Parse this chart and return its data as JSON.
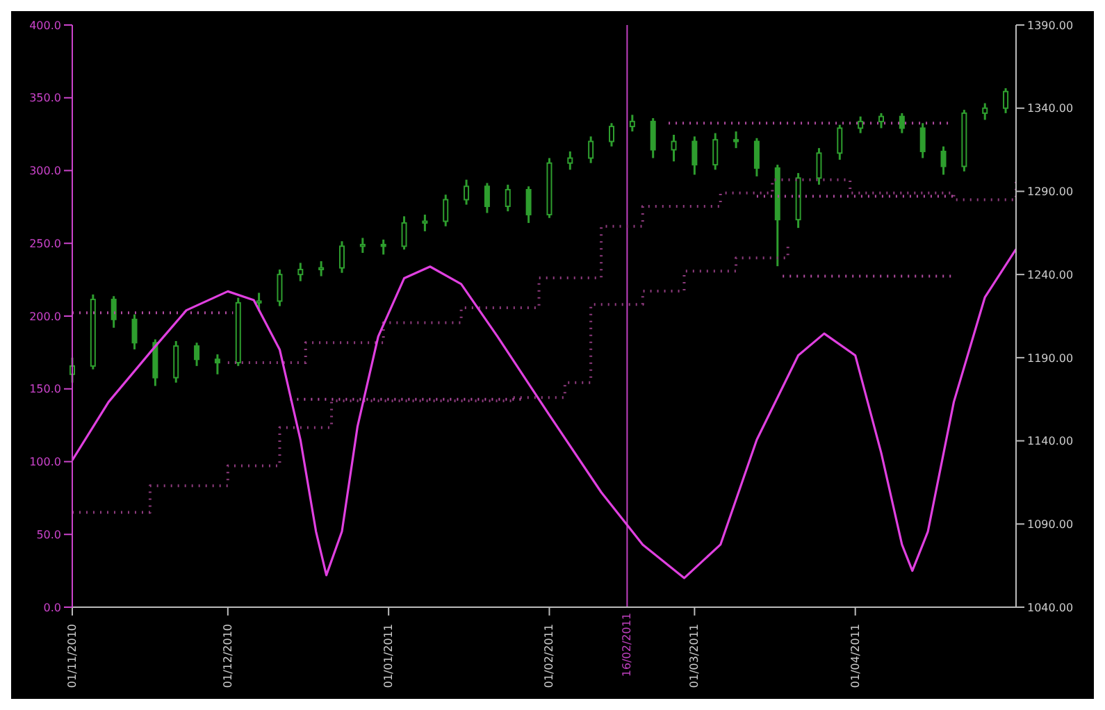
{
  "chart_data": {
    "type": "candlestick",
    "xlim": [
      "2010-11-01",
      "2011-05-02"
    ],
    "xticks": [
      {
        "value": "2010-11-01",
        "label": "01/11/2010"
      },
      {
        "value": "2010-12-01",
        "label": "01/12/2010"
      },
      {
        "value": "2011-01-01",
        "label": "01/01/2011"
      },
      {
        "value": "2011-02-01",
        "label": "01/02/2011"
      },
      {
        "value": "2011-03-01",
        "label": "01/03/2011"
      },
      {
        "value": "2011-04-01",
        "label": "01/04/2011"
      }
    ],
    "ylim": [
      0,
      400
    ],
    "yticks": [
      {
        "value": 0,
        "label": "0.0"
      },
      {
        "value": 50,
        "label": "50.0"
      },
      {
        "value": 100,
        "label": "100.0"
      },
      {
        "value": 150,
        "label": "150.0"
      },
      {
        "value": 200,
        "label": "200.0"
      },
      {
        "value": 250,
        "label": "250.0"
      },
      {
        "value": 300,
        "label": "300.0"
      },
      {
        "value": 350,
        "label": "350.0"
      },
      {
        "value": 400,
        "label": "400.0"
      }
    ],
    "y2lim": [
      1040,
      1390
    ],
    "y2ticks": [
      {
        "value": 1040,
        "label": "1040.00"
      },
      {
        "value": 1090,
        "label": "1090.00"
      },
      {
        "value": 1140,
        "label": "1140.00"
      },
      {
        "value": 1190,
        "label": "1190.00"
      },
      {
        "value": 1240,
        "label": "1240.00"
      },
      {
        "value": 1290,
        "label": "1290.00"
      },
      {
        "value": 1340,
        "label": "1340.00"
      },
      {
        "value": 1390,
        "label": "1390.00"
      }
    ],
    "ref_lines": [
      {
        "axis": "x",
        "value": "2011-02-16",
        "label": "16/02/2011",
        "color": "#c040c0"
      }
    ],
    "series": [
      {
        "type": "step",
        "axis": "y2",
        "color": "#8c3a7c",
        "line_style": "dotted",
        "x": [
          "2010-11-01",
          "2010-11-16",
          "2010-12-01",
          "2010-12-11",
          "2010-12-21",
          "2011-01-25",
          "2011-02-04",
          "2011-02-09",
          "2011-02-19",
          "2011-02-27",
          "2011-03-09",
          "2011-03-19"
        ],
        "values": [
          1097,
          1113,
          1125,
          1148,
          1164,
          1166,
          1175,
          1222,
          1230,
          1242,
          1250,
          1258
        ]
      },
      {
        "type": "step",
        "axis": "y2",
        "color": "#8c3a7c",
        "line_style": "dotted",
        "x": [
          "2010-12-01",
          "2010-12-16",
          "2010-12-31",
          "2011-01-15",
          "2011-01-30",
          "2011-02-11",
          "2011-02-19",
          "2011-03-06",
          "2011-03-16",
          "2011-03-31",
          "2011-04-20",
          "2011-05-02"
        ],
        "values": [
          1187,
          1199,
          1211,
          1220,
          1238,
          1269,
          1281,
          1289,
          1297,
          1289,
          1285,
          1297
        ]
      },
      {
        "type": "line",
        "axis": "y2",
        "color": "#b04aa0",
        "line_style": "dotted",
        "x": [
          "2010-11-01",
          "2010-12-02"
        ],
        "values": [
          1217,
          1217
        ]
      },
      {
        "type": "line",
        "axis": "y2",
        "color": "#b04aa0",
        "line_style": "dotted",
        "x": [
          "2010-12-13",
          "2011-01-27"
        ],
        "values": [
          1165,
          1165
        ]
      },
      {
        "type": "line",
        "axis": "y2",
        "color": "#b04aa0",
        "line_style": "dotted",
        "x": [
          "2011-02-24",
          "2011-04-19"
        ],
        "values": [
          1331,
          1331
        ]
      },
      {
        "type": "line",
        "axis": "y2",
        "color": "#b04aa0",
        "line_style": "dotted",
        "x": [
          "2011-03-13",
          "2011-04-20"
        ],
        "values": [
          1287,
          1287
        ]
      },
      {
        "type": "line",
        "axis": "y2",
        "color": "#b04aa0",
        "line_style": "dotted",
        "x": [
          "2011-03-18",
          "2011-04-20"
        ],
        "values": [
          1239,
          1239
        ]
      },
      {
        "axis": "y2",
        "color": "#2e9e2e",
        "x": [
          "2010-11-01",
          "2010-11-05",
          "2010-11-09",
          "2010-11-13",
          "2010-11-17",
          "2010-11-21",
          "2010-11-25",
          "2010-11-29",
          "2010-12-03",
          "2010-12-07",
          "2010-12-11",
          "2010-12-15",
          "2010-12-19",
          "2010-12-23",
          "2010-12-27",
          "2010-12-31",
          "2011-01-04",
          "2011-01-08",
          "2011-01-12",
          "2011-01-16",
          "2011-01-20",
          "2011-01-24",
          "2011-01-28",
          "2011-02-01",
          "2011-02-05",
          "2011-02-09",
          "2011-02-13",
          "2011-02-17",
          "2011-02-21",
          "2011-02-25",
          "2011-03-01",
          "2011-03-05",
          "2011-03-09",
          "2011-03-13",
          "2011-03-17",
          "2011-03-21",
          "2011-03-25",
          "2011-03-29",
          "2011-04-02",
          "2011-04-06",
          "2011-04-10",
          "2011-04-14",
          "2011-04-18",
          "2011-04-22",
          "2011-04-26",
          "2011-04-30"
        ],
        "ohlc": [
          [
            1180,
            1190,
            1175,
            1185
          ],
          [
            1185,
            1228,
            1183,
            1225
          ],
          [
            1225,
            1227,
            1208,
            1213
          ],
          [
            1213,
            1216,
            1195,
            1199
          ],
          [
            1199,
            1201,
            1173,
            1178
          ],
          [
            1178,
            1200,
            1175,
            1197
          ],
          [
            1197,
            1199,
            1185,
            1189
          ],
          [
            1189,
            1192,
            1180,
            1187
          ],
          [
            1187,
            1226,
            1185,
            1223
          ],
          [
            1223,
            1229,
            1218,
            1224
          ],
          [
            1224,
            1243,
            1221,
            1240
          ],
          [
            1240,
            1247,
            1236,
            1243
          ],
          [
            1243,
            1248,
            1239,
            1244
          ],
          [
            1244,
            1260,
            1241,
            1257
          ],
          [
            1257,
            1262,
            1253,
            1258
          ],
          [
            1258,
            1261,
            1252,
            1257
          ],
          [
            1257,
            1275,
            1255,
            1271
          ],
          [
            1271,
            1276,
            1266,
            1272
          ],
          [
            1272,
            1288,
            1269,
            1285
          ],
          [
            1285,
            1297,
            1282,
            1293
          ],
          [
            1293,
            1295,
            1277,
            1281
          ],
          [
            1281,
            1294,
            1278,
            1291
          ],
          [
            1291,
            1293,
            1271,
            1276
          ],
          [
            1276,
            1310,
            1274,
            1307
          ],
          [
            1307,
            1314,
            1303,
            1310
          ],
          [
            1310,
            1323,
            1307,
            1320
          ],
          [
            1320,
            1331,
            1317,
            1329
          ],
          [
            1329,
            1336,
            1326,
            1332
          ],
          [
            1332,
            1334,
            1310,
            1315
          ],
          [
            1315,
            1324,
            1308,
            1320
          ],
          [
            1320,
            1323,
            1300,
            1306
          ],
          [
            1306,
            1325,
            1303,
            1321
          ],
          [
            1321,
            1326,
            1316,
            1320
          ],
          [
            1320,
            1322,
            1299,
            1304
          ],
          [
            1304,
            1306,
            1245,
            1273
          ],
          [
            1273,
            1301,
            1268,
            1298
          ],
          [
            1298,
            1316,
            1294,
            1313
          ],
          [
            1313,
            1330,
            1309,
            1328
          ],
          [
            1328,
            1335,
            1325,
            1332
          ],
          [
            1332,
            1337,
            1328,
            1335
          ],
          [
            1335,
            1337,
            1325,
            1328
          ],
          [
            1328,
            1331,
            1310,
            1314
          ],
          [
            1314,
            1317,
            1300,
            1305
          ],
          [
            1305,
            1339,
            1302,
            1337
          ],
          [
            1337,
            1343,
            1333,
            1340
          ],
          [
            1340,
            1352,
            1337,
            1350
          ]
        ]
      },
      {
        "type": "line",
        "axis": "y",
        "color": "#e040e0",
        "x": [
          "2010-11-01",
          "2010-11-08",
          "2010-11-16",
          "2010-11-23",
          "2010-12-01",
          "2010-12-06",
          "2010-12-11",
          "2010-12-15",
          "2010-12-18",
          "2010-12-20",
          "2010-12-23",
          "2010-12-26",
          "2010-12-30",
          "2011-01-04",
          "2011-01-09",
          "2011-01-15",
          "2011-01-22",
          "2011-02-01",
          "2011-02-11",
          "2011-02-19",
          "2011-02-27",
          "2011-03-06",
          "2011-03-13",
          "2011-03-21",
          "2011-03-26",
          "2011-04-01",
          "2011-04-06",
          "2011-04-10",
          "2011-04-12",
          "2011-04-15",
          "2011-04-20",
          "2011-04-26",
          "2011-05-02"
        ],
        "values": [
          101,
          141,
          175,
          204,
          217,
          211,
          177,
          115,
          52,
          22,
          52,
          124,
          186,
          226,
          234,
          222,
          186,
          132,
          79,
          43,
          20,
          43,
          115,
          173,
          188,
          173,
          106,
          43,
          25,
          52,
          141,
          213,
          246
        ]
      }
    ]
  }
}
